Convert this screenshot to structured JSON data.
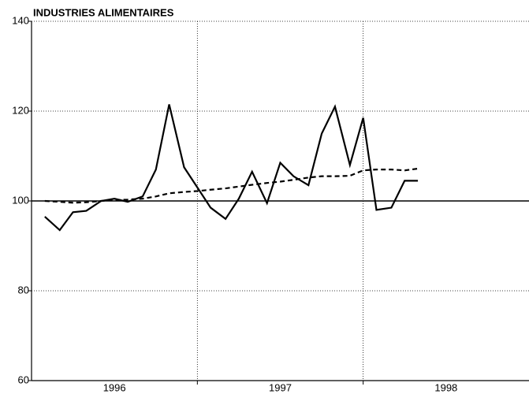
{
  "chart_data": {
    "type": "line",
    "title": "INDUSTRIES ALIMENTAIRES",
    "x": [
      1996.08,
      1996.17,
      1996.25,
      1996.33,
      1996.42,
      1996.5,
      1996.58,
      1996.67,
      1996.75,
      1996.83,
      1996.92,
      1997.0,
      1997.08,
      1997.17,
      1997.25,
      1997.33,
      1997.42,
      1997.5,
      1997.58,
      1997.67,
      1997.75,
      1997.83,
      1997.92,
      1998.0,
      1998.08,
      1998.17,
      1998.25,
      1998.33
    ],
    "series": [
      {
        "color": "#000000",
        "style": "solid",
        "values": [
          96.5,
          93.5,
          97.5,
          97.8,
          100,
          100.5,
          99.8,
          101,
          107,
          121.5,
          107.5,
          103,
          98.5,
          96,
          100.5,
          106.5,
          99.5,
          108.5,
          105.5,
          103.5,
          115,
          121,
          108,
          118.5,
          98,
          98.5,
          104.5,
          104.5
        ]
      },
      {
        "color": "#000000",
        "style": "dashed",
        "values": [
          100,
          99.8,
          99.6,
          99.7,
          100,
          100.2,
          100.3,
          100.5,
          101,
          101.7,
          102,
          102.2,
          102.5,
          102.8,
          103.2,
          103.6,
          104,
          104.3,
          104.7,
          105.2,
          105.5,
          105.5,
          105.6,
          106.8,
          107,
          107,
          106.8,
          107.2
        ]
      }
    ],
    "xlim": [
      1996,
      1999
    ],
    "xticks": [
      {
        "value": 1996.5,
        "label": "1996"
      },
      {
        "value": 1997.5,
        "label": "1997"
      },
      {
        "value": 1998.5,
        "label": "1998"
      }
    ],
    "xgrid": [
      1997,
      1998
    ],
    "ylim": [
      60,
      140
    ],
    "yticks": [
      60,
      80,
      100,
      120,
      140
    ],
    "reference_line": 100,
    "grid": true
  }
}
